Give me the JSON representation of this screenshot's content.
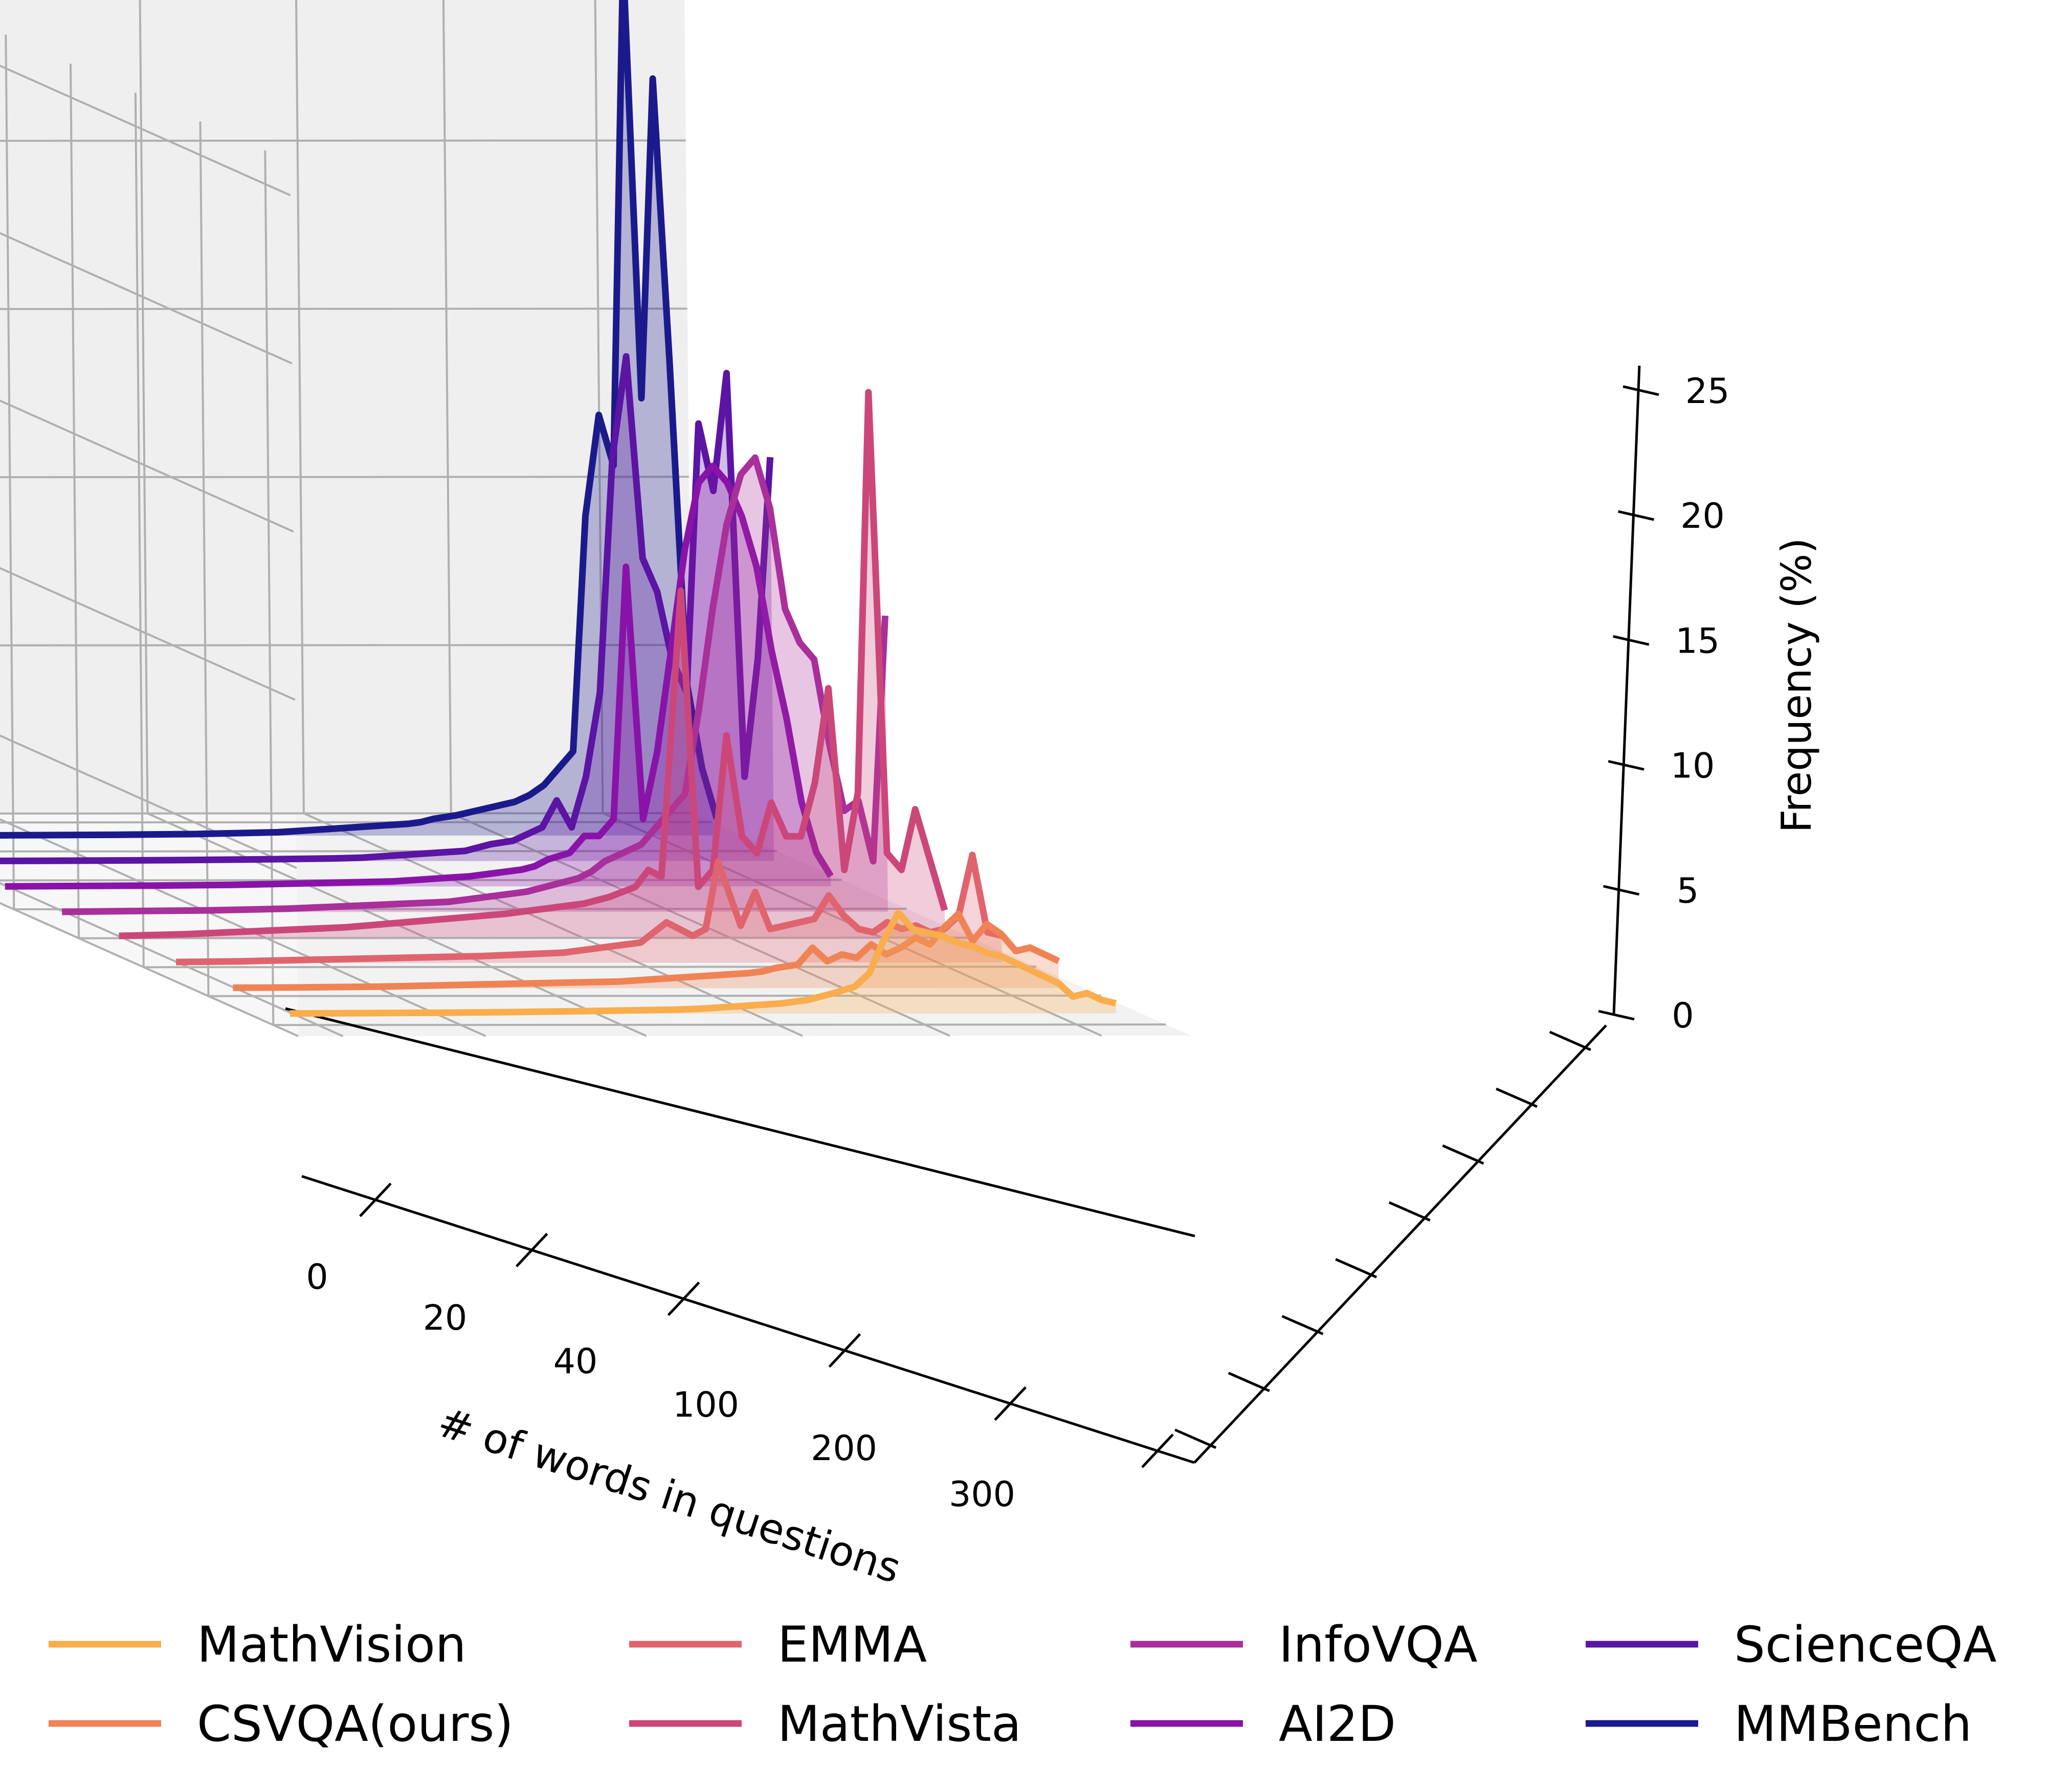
{
  "chart_data": {
    "type": "line",
    "subtype": "3d-waterfall-with-fill",
    "title": "",
    "xlabel": "# of words in questions",
    "ylabel": "",
    "zlabel": "Frequency (%)",
    "x_tick_labels": [
      "0",
      "20",
      "40",
      "100",
      "200",
      "300"
    ],
    "z_ticks": [
      0,
      5,
      10,
      15,
      20,
      25
    ],
    "z_tick_labels": [
      "0",
      "5",
      "10",
      "15",
      "20",
      "25"
    ],
    "zlim": [
      0,
      26
    ],
    "grid": true,
    "legend_position": "bottom",
    "legend_columns": 4,
    "series": [
      {
        "name": "MathVision",
        "color": "#f9ad4c",
        "points": [
          [
            1,
            0.3
          ],
          [
            3,
            0.4
          ],
          [
            5,
            0.6
          ],
          [
            7,
            0.5
          ],
          [
            9,
            0.9
          ],
          [
            11,
            1.1
          ],
          [
            13,
            1.3
          ],
          [
            15,
            1.5
          ],
          [
            17,
            1.7
          ],
          [
            19,
            1.8
          ],
          [
            21,
            2.0
          ],
          [
            23,
            2.1
          ],
          [
            25,
            2.3
          ],
          [
            27,
            2.4
          ],
          [
            29,
            2.5
          ],
          [
            31,
            3.0
          ],
          [
            33,
            2.2
          ],
          [
            35,
            1.2
          ],
          [
            37,
            0.8
          ],
          [
            40,
            0.6
          ],
          [
            45,
            0.5
          ],
          [
            50,
            0.4
          ],
          [
            60,
            0.3
          ],
          [
            70,
            0.25
          ],
          [
            80,
            0.2
          ],
          [
            90,
            0.15
          ],
          [
            100,
            0.12
          ],
          [
            150,
            0.08
          ],
          [
            200,
            0.05
          ],
          [
            250,
            0.03
          ],
          [
            300,
            0.02
          ],
          [
            340,
            0.01
          ]
        ]
      },
      {
        "name": "CSVQA(ours)",
        "color": "#f08355",
        "points": [
          [
            1,
            0.8
          ],
          [
            3,
            1.0
          ],
          [
            5,
            1.2
          ],
          [
            7,
            1.1
          ],
          [
            9,
            1.6
          ],
          [
            11,
            1.9
          ],
          [
            13,
            1.4
          ],
          [
            15,
            2.2
          ],
          [
            17,
            1.8
          ],
          [
            19,
            1.3
          ],
          [
            21,
            1.5
          ],
          [
            23,
            1.2
          ],
          [
            25,
            1.0
          ],
          [
            27,
            1.3
          ],
          [
            29,
            0.9
          ],
          [
            31,
            1.0
          ],
          [
            33,
            0.8
          ],
          [
            35,
            1.2
          ],
          [
            37,
            0.7
          ],
          [
            40,
            0.6
          ],
          [
            45,
            0.5
          ],
          [
            50,
            0.45
          ],
          [
            60,
            0.4
          ],
          [
            70,
            0.35
          ],
          [
            80,
            0.3
          ],
          [
            90,
            0.25
          ],
          [
            100,
            0.2
          ],
          [
            150,
            0.15
          ],
          [
            200,
            0.1
          ],
          [
            250,
            0.05
          ],
          [
            300,
            0.03
          ],
          [
            340,
            0.02
          ]
        ]
      },
      {
        "name": "EMMA",
        "color": "#e0646e",
        "points": [
          [
            1,
            0.8
          ],
          [
            3,
            0.9
          ],
          [
            5,
            3.2
          ],
          [
            7,
            1.4
          ],
          [
            9,
            1.0
          ],
          [
            11,
            0.9
          ],
          [
            13,
            1.1
          ],
          [
            15,
            1.0
          ],
          [
            17,
            1.2
          ],
          [
            19,
            0.9
          ],
          [
            21,
            1.0
          ],
          [
            23,
            1.4
          ],
          [
            25,
            2.0
          ],
          [
            27,
            1.3
          ],
          [
            29,
            1.2
          ],
          [
            31,
            1.1
          ],
          [
            33,
            1.0
          ],
          [
            35,
            2.1
          ],
          [
            37,
            1.1
          ],
          [
            40,
            3.0
          ],
          [
            45,
            1.0
          ],
          [
            50,
            0.8
          ],
          [
            60,
            1.2
          ],
          [
            70,
            0.6
          ],
          [
            80,
            0.5
          ],
          [
            90,
            0.4
          ],
          [
            100,
            0.3
          ],
          [
            150,
            0.2
          ],
          [
            200,
            0.15
          ],
          [
            250,
            0.1
          ],
          [
            300,
            0.05
          ],
          [
            340,
            0.03
          ]
        ]
      },
      {
        "name": "MathVista",
        "color": "#cc4779",
        "points": [
          [
            1,
            0.8
          ],
          [
            3,
            2.3
          ],
          [
            5,
            3.8
          ],
          [
            7,
            2.0
          ],
          [
            9,
            2.5
          ],
          [
            11,
            16.2
          ],
          [
            13,
            4.3
          ],
          [
            15,
            2.0
          ],
          [
            17,
            7.4
          ],
          [
            19,
            4.6
          ],
          [
            21,
            3.0
          ],
          [
            23,
            3.0
          ],
          [
            25,
            4.0
          ],
          [
            27,
            2.5
          ],
          [
            29,
            3.0
          ],
          [
            31,
            6.0
          ],
          [
            33,
            2.0
          ],
          [
            35,
            1.5
          ],
          [
            37,
            10.3
          ],
          [
            40,
            1.8
          ],
          [
            45,
            2.0
          ],
          [
            50,
            1.5
          ],
          [
            60,
            1.2
          ],
          [
            70,
            1.0
          ],
          [
            80,
            0.9
          ],
          [
            90,
            0.8
          ],
          [
            100,
            0.7
          ],
          [
            150,
            0.5
          ],
          [
            200,
            0.3
          ],
          [
            250,
            0.2
          ],
          [
            300,
            0.1
          ],
          [
            340,
            0.05
          ]
        ]
      },
      {
        "name": "InfoVQA",
        "color": "#a92f9a",
        "points": [
          [
            1,
            8.8
          ],
          [
            3,
            1.5
          ],
          [
            5,
            3.3
          ],
          [
            7,
            3.0
          ],
          [
            9,
            5.0
          ],
          [
            11,
            7.5
          ],
          [
            13,
            8.0
          ],
          [
            15,
            9.0
          ],
          [
            17,
            12.0
          ],
          [
            19,
            13.5
          ],
          [
            21,
            13.0
          ],
          [
            23,
            11.5
          ],
          [
            25,
            9.0
          ],
          [
            27,
            6.0
          ],
          [
            29,
            3.5
          ],
          [
            31,
            3.0
          ],
          [
            33,
            2.5
          ],
          [
            35,
            2.0
          ],
          [
            37,
            1.8
          ],
          [
            40,
            1.5
          ],
          [
            45,
            1.2
          ],
          [
            50,
            1.0
          ],
          [
            60,
            0.8
          ],
          [
            70,
            0.6
          ],
          [
            80,
            0.5
          ],
          [
            90,
            0.4
          ],
          [
            100,
            0.3
          ],
          [
            150,
            0.2
          ],
          [
            200,
            0.1
          ],
          [
            250,
            0.05
          ],
          [
            300,
            0.03
          ],
          [
            340,
            0.01
          ]
        ]
      },
      {
        "name": "AI2D",
        "color": "#8913a8",
        "points": [
          [
            1,
            0.3
          ],
          [
            3,
            1.0
          ],
          [
            5,
            2.5
          ],
          [
            7,
            5.0
          ],
          [
            9,
            7.0
          ],
          [
            11,
            9.5
          ],
          [
            13,
            11.0
          ],
          [
            15,
            12.0
          ],
          [
            17,
            12.5
          ],
          [
            19,
            12.0
          ],
          [
            21,
            10.0
          ],
          [
            23,
            7.0
          ],
          [
            25,
            4.0
          ],
          [
            27,
            2.0
          ],
          [
            29,
            9.5
          ],
          [
            31,
            2.0
          ],
          [
            33,
            1.5
          ],
          [
            35,
            1.5
          ],
          [
            37,
            1.0
          ],
          [
            40,
            0.8
          ],
          [
            45,
            0.6
          ],
          [
            50,
            0.5
          ],
          [
            60,
            0.4
          ],
          [
            70,
            0.3
          ],
          [
            80,
            0.25
          ],
          [
            90,
            0.2
          ],
          [
            100,
            0.15
          ],
          [
            150,
            0.1
          ],
          [
            200,
            0.05
          ],
          [
            250,
            0.03
          ],
          [
            300,
            0.02
          ],
          [
            340,
            0.01
          ]
        ]
      },
      {
        "name": "ScienceQA",
        "color": "#5b14a3",
        "points": [
          [
            1,
            12.0
          ],
          [
            3,
            6.0
          ],
          [
            5,
            2.5
          ],
          [
            7,
            14.5
          ],
          [
            9,
            11.0
          ],
          [
            11,
            13.0
          ],
          [
            13,
            5.0
          ],
          [
            15,
            6.0
          ],
          [
            17,
            8.0
          ],
          [
            19,
            9.0
          ],
          [
            21,
            15.0
          ],
          [
            23,
            12.0
          ],
          [
            25,
            5.0
          ],
          [
            27,
            2.5
          ],
          [
            29,
            1.0
          ],
          [
            31,
            1.8
          ],
          [
            33,
            1.0
          ],
          [
            35,
            0.8
          ],
          [
            37,
            0.6
          ],
          [
            40,
            0.5
          ],
          [
            45,
            0.4
          ],
          [
            50,
            0.3
          ],
          [
            60,
            0.25
          ],
          [
            70,
            0.2
          ],
          [
            80,
            0.15
          ],
          [
            90,
            0.1
          ],
          [
            100,
            0.08
          ],
          [
            150,
            0.05
          ],
          [
            200,
            0.03
          ],
          [
            250,
            0.02
          ],
          [
            300,
            0.01
          ],
          [
            340,
            0.01
          ]
        ]
      },
      {
        "name": "MMBench",
        "color": "#1b1a8c",
        "points": [
          [
            1,
            0.5
          ],
          [
            3,
            2.0
          ],
          [
            5,
            4.5
          ],
          [
            7,
            14.0
          ],
          [
            9,
            22.5
          ],
          [
            11,
            13.0
          ],
          [
            13,
            27.0
          ],
          [
            15,
            11.0
          ],
          [
            17,
            12.5
          ],
          [
            19,
            9.5
          ],
          [
            21,
            2.5
          ],
          [
            23,
            2.0
          ],
          [
            25,
            1.5
          ],
          [
            27,
            1.2
          ],
          [
            29,
            1.0
          ],
          [
            31,
            0.9
          ],
          [
            33,
            0.8
          ],
          [
            35,
            0.7
          ],
          [
            37,
            0.6
          ],
          [
            40,
            0.5
          ],
          [
            45,
            0.4
          ],
          [
            50,
            0.35
          ],
          [
            60,
            0.3
          ],
          [
            70,
            0.25
          ],
          [
            80,
            0.2
          ],
          [
            90,
            0.15
          ],
          [
            100,
            0.1
          ],
          [
            150,
            0.05
          ],
          [
            200,
            0.03
          ],
          [
            250,
            0.02
          ],
          [
            300,
            0.01
          ],
          [
            340,
            0.01
          ]
        ]
      }
    ]
  }
}
